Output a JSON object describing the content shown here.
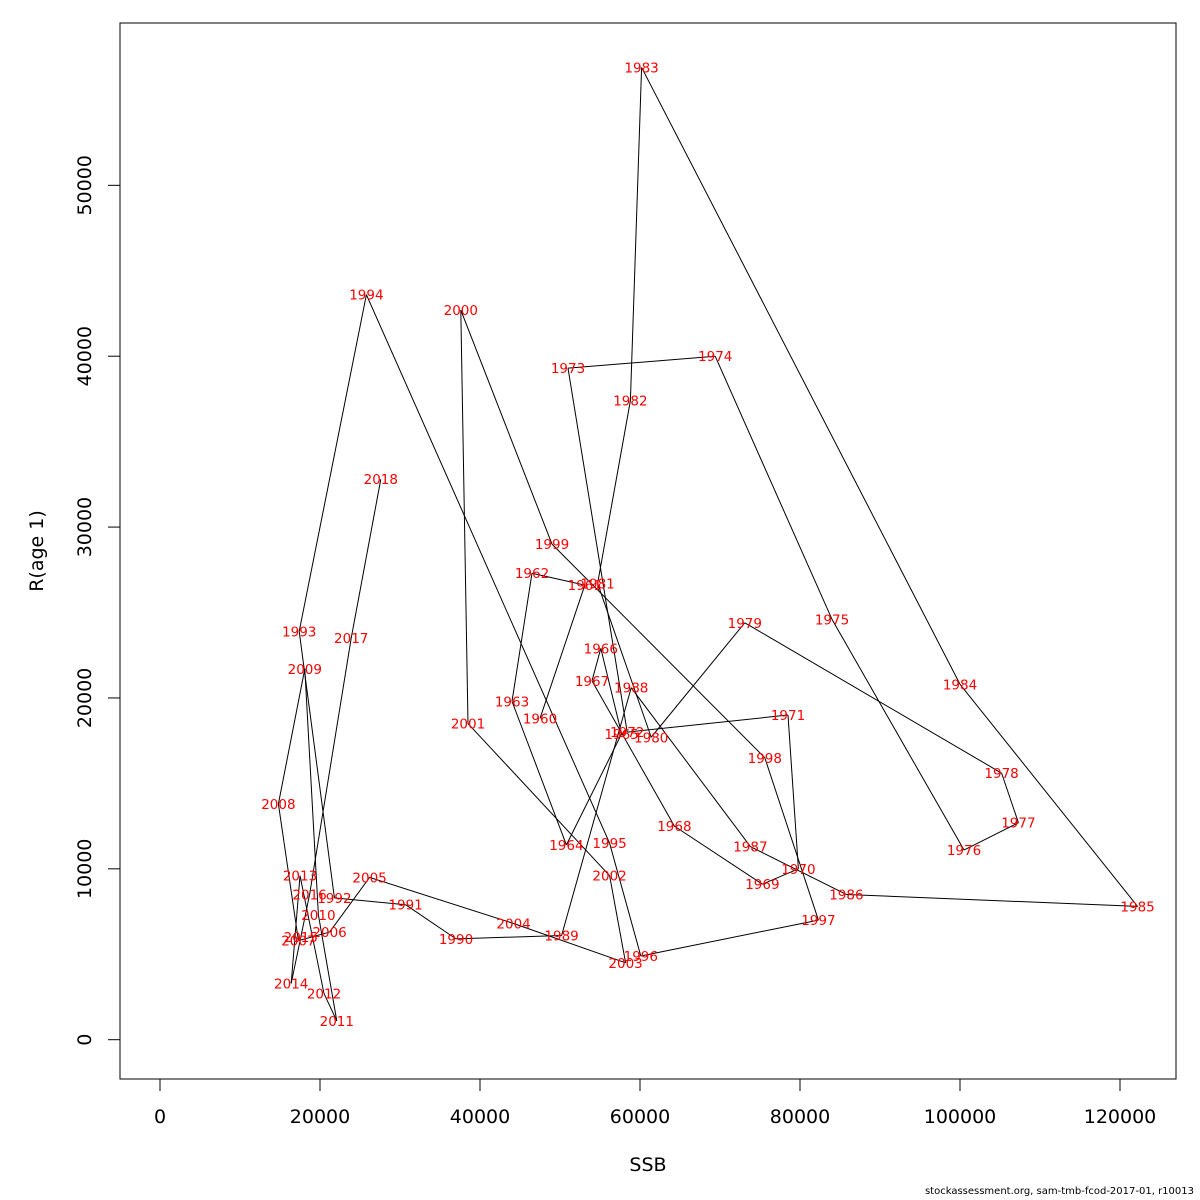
{
  "chart_data": {
    "type": "line",
    "title": "",
    "xlabel": "SSB",
    "ylabel": "R(age 1)",
    "xlim": [
      -5000,
      127000
    ],
    "ylim": [
      -2300,
      59500
    ],
    "xticks": [
      0,
      20000,
      40000,
      60000,
      80000,
      100000,
      120000
    ],
    "yticks": [
      0,
      10000,
      20000,
      30000,
      40000,
      50000
    ],
    "grid": false,
    "line_color": "#000000",
    "label_color": "#ff0000",
    "points": [
      {
        "year": "1960",
        "x": 47500,
        "y": 18800
      },
      {
        "year": "1961",
        "x": 53100,
        "y": 26600
      },
      {
        "year": "1962",
        "x": 46500,
        "y": 27300
      },
      {
        "year": "1963",
        "x": 44000,
        "y": 19800
      },
      {
        "year": "1964",
        "x": 50800,
        "y": 11400
      },
      {
        "year": "1965",
        "x": 57700,
        "y": 17900
      },
      {
        "year": "1966",
        "x": 55100,
        "y": 22900
      },
      {
        "year": "1967",
        "x": 54000,
        "y": 21000
      },
      {
        "year": "1968",
        "x": 64300,
        "y": 12500
      },
      {
        "year": "1969",
        "x": 75300,
        "y": 9100
      },
      {
        "year": "1970",
        "x": 79800,
        "y": 10000
      },
      {
        "year": "1971",
        "x": 78500,
        "y": 19000
      },
      {
        "year": "1972",
        "x": 58400,
        "y": 18000
      },
      {
        "year": "1973",
        "x": 51000,
        "y": 39300
      },
      {
        "year": "1974",
        "x": 69400,
        "y": 40000
      },
      {
        "year": "1975",
        "x": 84000,
        "y": 24600
      },
      {
        "year": "1976",
        "x": 100500,
        "y": 11100
      },
      {
        "year": "1977",
        "x": 107300,
        "y": 12700
      },
      {
        "year": "1978",
        "x": 105200,
        "y": 15600
      },
      {
        "year": "1979",
        "x": 73100,
        "y": 24400
      },
      {
        "year": "1980",
        "x": 61400,
        "y": 17700
      },
      {
        "year": "1981",
        "x": 54700,
        "y": 26700
      },
      {
        "year": "1982",
        "x": 58800,
        "y": 37400
      },
      {
        "year": "1983",
        "x": 60200,
        "y": 56900
      },
      {
        "year": "1984",
        "x": 100000,
        "y": 20800
      },
      {
        "year": "1985",
        "x": 122200,
        "y": 7800
      },
      {
        "year": "1986",
        "x": 85800,
        "y": 8500
      },
      {
        "year": "1987",
        "x": 73800,
        "y": 11300
      },
      {
        "year": "1988",
        "x": 58900,
        "y": 20600
      },
      {
        "year": "1989",
        "x": 50200,
        "y": 6100
      },
      {
        "year": "1990",
        "x": 37000,
        "y": 5900
      },
      {
        "year": "1991",
        "x": 30700,
        "y": 7900
      },
      {
        "year": "1992",
        "x": 21800,
        "y": 8300
      },
      {
        "year": "1993",
        "x": 17400,
        "y": 23900
      },
      {
        "year": "1994",
        "x": 25800,
        "y": 43600
      },
      {
        "year": "1995",
        "x": 56200,
        "y": 11500
      },
      {
        "year": "1996",
        "x": 60100,
        "y": 4900
      },
      {
        "year": "1997",
        "x": 82300,
        "y": 7000
      },
      {
        "year": "1998",
        "x": 75600,
        "y": 16500
      },
      {
        "year": "1999",
        "x": 49000,
        "y": 29000
      },
      {
        "year": "2000",
        "x": 37600,
        "y": 42700
      },
      {
        "year": "2001",
        "x": 38500,
        "y": 18500
      },
      {
        "year": "2002",
        "x": 56200,
        "y": 9600
      },
      {
        "year": "2003",
        "x": 58200,
        "y": 4500
      },
      {
        "year": "2004",
        "x": 44200,
        "y": 6800
      },
      {
        "year": "2005",
        "x": 26200,
        "y": 9500
      },
      {
        "year": "2006",
        "x": 21200,
        "y": 6300
      },
      {
        "year": "2007",
        "x": 17300,
        "y": 5800
      },
      {
        "year": "2008",
        "x": 14800,
        "y": 13800
      },
      {
        "year": "2009",
        "x": 18100,
        "y": 21700
      },
      {
        "year": "2010",
        "x": 19800,
        "y": 7300
      },
      {
        "year": "2011",
        "x": 22100,
        "y": 1100
      },
      {
        "year": "2012",
        "x": 20500,
        "y": 2700
      },
      {
        "year": "2013",
        "x": 17500,
        "y": 9600
      },
      {
        "year": "2014",
        "x": 16400,
        "y": 3300
      },
      {
        "year": "2015",
        "x": 17600,
        "y": 6000
      },
      {
        "year": "2016",
        "x": 18700,
        "y": 8500
      },
      {
        "year": "2017",
        "x": 23900,
        "y": 23500
      },
      {
        "year": "2018",
        "x": 27600,
        "y": 32800
      }
    ]
  },
  "footer": "stockassessment.org, sam-tmb-fcod-2017-01, r10013"
}
